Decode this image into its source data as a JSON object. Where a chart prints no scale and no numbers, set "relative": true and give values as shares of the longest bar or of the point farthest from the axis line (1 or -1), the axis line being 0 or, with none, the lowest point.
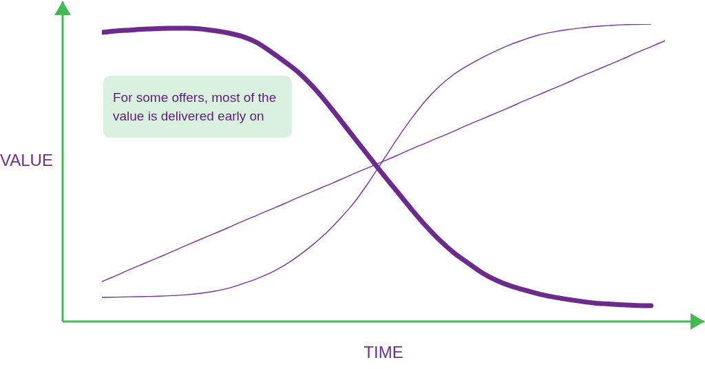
{
  "chart_data": {
    "type": "line",
    "relative": true,
    "xlabel": "TIME",
    "ylabel": "VALUE",
    "annotations": [
      "For some offers, most of the value is delivered early on"
    ],
    "marker": "none",
    "categories": [
      null,
      null,
      null,
      null,
      null,
      null,
      null,
      null,
      null,
      null,
      null,
      null,
      null,
      null,
      null,
      null,
      null,
      null,
      null,
      null,
      null,
      null,
      null,
      null,
      null,
      null,
      null,
      null,
      null,
      null,
      null,
      null,
      null,
      null,
      null,
      null,
      null,
      null,
      null,
      null,
      null
    ],
    "series": [
      {
        "color": "#6b2a8c",
        "values": [
          0.972,
          0.977,
          0.98,
          0.983,
          0.985,
          0.986,
          0.986,
          0.984,
          0.978,
          0.97,
          0.958,
          0.938,
          0.907,
          0.873,
          0.836,
          0.789,
          0.734,
          0.674,
          0.613,
          0.553,
          0.493,
          0.435,
          0.377,
          0.322,
          0.273,
          0.231,
          0.197,
          0.164,
          0.139,
          0.12,
          0.106,
          0.093,
          0.083,
          0.075,
          0.068,
          0.062,
          0.059,
          0.056,
          0.054,
          0.053,
          null
        ]
      },
      {
        "color": "#7a2e9e",
        "values": [
          0.081,
          0.082,
          0.083,
          0.084,
          0.085,
          0.087,
          0.09,
          0.095,
          0.102,
          0.112,
          0.127,
          0.144,
          0.164,
          0.19,
          0.222,
          0.259,
          0.301,
          0.35,
          0.405,
          0.472,
          0.544,
          0.616,
          0.683,
          0.743,
          0.792,
          0.831,
          0.861,
          0.887,
          0.91,
          0.931,
          0.948,
          0.963,
          0.973,
          0.981,
          0.987,
          0.992,
          0.995,
          0.998,
          0.999,
          1,
          null
        ]
      },
      {
        "color": "#7a2e9e",
        "values": [
          0.134,
          0.154,
          0.175,
          0.195,
          0.215,
          0.235,
          0.256,
          0.276,
          0.296,
          0.316,
          0.337,
          0.357,
          0.377,
          0.397,
          0.418,
          0.438,
          0.458,
          0.478,
          0.499,
          0.519,
          0.539,
          0.559,
          0.58,
          0.6,
          0.62,
          0.64,
          0.661,
          0.681,
          0.701,
          0.721,
          0.742,
          0.762,
          0.782,
          0.802,
          0.823,
          0.843,
          0.863,
          0.883,
          0.904,
          0.924,
          0.944
        ]
      }
    ]
  }
}
